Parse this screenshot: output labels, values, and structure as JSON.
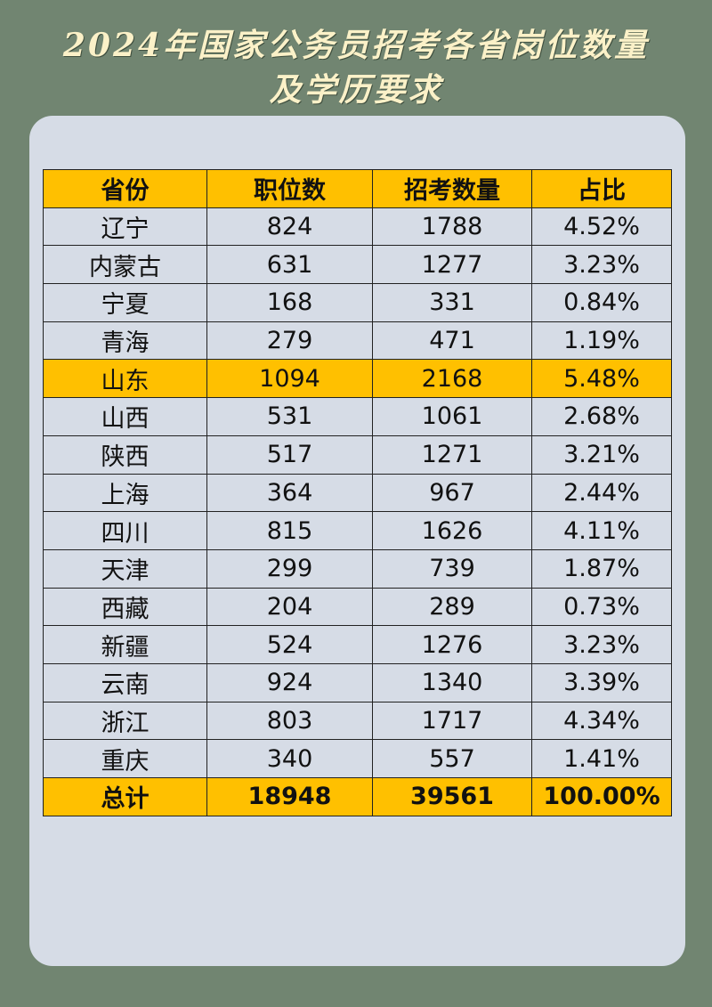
{
  "header": {
    "title_line1": "2024年国家公务员招考各省岗位数量",
    "title_line2": "及学历要求"
  },
  "table": {
    "columns": [
      "省份",
      "职位数",
      "招考数量",
      "占比"
    ],
    "rows": [
      [
        "辽宁",
        "824",
        "1788",
        "4.52%"
      ],
      [
        "内蒙古",
        "631",
        "1277",
        "3.23%"
      ],
      [
        "宁夏",
        "168",
        "331",
        "0.84%"
      ],
      [
        "青海",
        "279",
        "471",
        "1.19%"
      ],
      [
        "山东",
        "1094",
        "2168",
        "5.48%"
      ],
      [
        "山西",
        "531",
        "1061",
        "2.68%"
      ],
      [
        "陕西",
        "517",
        "1271",
        "3.21%"
      ],
      [
        "上海",
        "364",
        "967",
        "2.44%"
      ],
      [
        "四川",
        "815",
        "1626",
        "4.11%"
      ],
      [
        "天津",
        "299",
        "739",
        "1.87%"
      ],
      [
        "西藏",
        "204",
        "289",
        "0.73%"
      ],
      [
        "新疆",
        "524",
        "1276",
        "3.23%"
      ],
      [
        "云南",
        "924",
        "1340",
        "3.39%"
      ],
      [
        "浙江",
        "803",
        "1717",
        "4.34%"
      ],
      [
        "重庆",
        "340",
        "557",
        "1.41%"
      ]
    ],
    "total": [
      "总计",
      "18948",
      "39561",
      "100.00%"
    ]
  }
}
